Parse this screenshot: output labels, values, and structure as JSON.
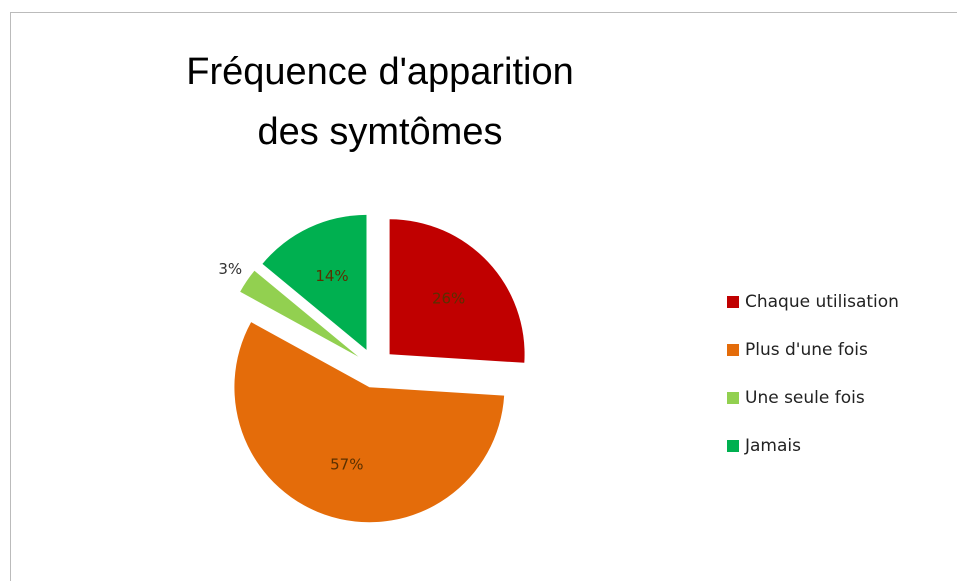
{
  "chart_data": {
    "type": "pie",
    "title": "Fréquence d'apparition des symtômes",
    "categories": [
      "Chaque utilisation",
      "Plus d'une fois",
      "Une seule fois",
      "Jamais"
    ],
    "values": [
      26,
      57,
      3,
      14
    ],
    "value_labels": [
      "26%",
      "57%",
      "3%",
      "14%"
    ],
    "colors": [
      "#c00000",
      "#e46c0a",
      "#92d050",
      "#00b050"
    ],
    "legend": "right"
  }
}
